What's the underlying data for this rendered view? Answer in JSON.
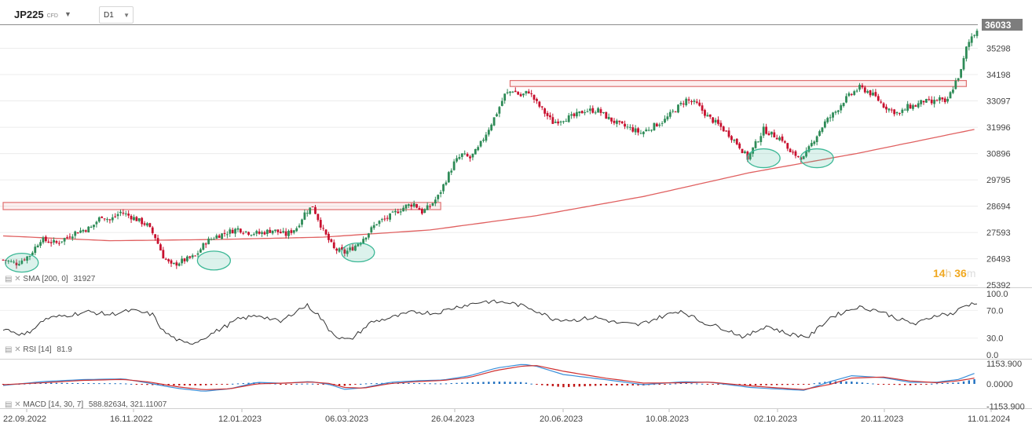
{
  "header": {
    "symbol": "JP225",
    "instrument_type": "CFD",
    "timeframe": "D1"
  },
  "timer": {
    "hours": "14",
    "h_unit": "h",
    "minutes": "36",
    "m_unit": "m"
  },
  "indicators": {
    "sma": {
      "name": "SMA",
      "params": "[200, 0]",
      "value": "31927"
    },
    "rsi": {
      "name": "RSI",
      "params": "[14]",
      "value": "81.9"
    },
    "macd": {
      "name": "MACD",
      "params": "[14, 30, 7]",
      "value": "588.82634, 321.11007"
    }
  },
  "colors": {
    "up": "#2e8b57",
    "down": "#c8102e",
    "sma": "#e06060",
    "zone": "#e07070",
    "ellipse": "#3cb896",
    "macd_line": "#3a8fd9",
    "signal_line": "#d03030",
    "hist_pos": "#1e6fc0",
    "hist_neg": "#c01515"
  },
  "chart_data": [
    {
      "type": "candlestick",
      "title": "JP225",
      "timeframe": "D1",
      "x_ticks": [
        "22.09.2022",
        "16.11.2022",
        "12.01.2023",
        "06.03.2023",
        "26.04.2023",
        "20.06.2023",
        "10.08.2023",
        "02.10.2023",
        "20.11.2023",
        "11.01.2024"
      ],
      "y_ticks": [
        25392,
        26493,
        27593,
        28694,
        29795,
        30896,
        31996,
        33097,
        34198,
        35298
      ],
      "ylim": [
        25300,
        36300
      ],
      "last_price": 36033,
      "close_path": [
        [
          0,
          26450
        ],
        [
          5,
          26300
        ],
        [
          10,
          26650
        ],
        [
          14,
          27300
        ],
        [
          20,
          27150
        ],
        [
          27,
          27600
        ],
        [
          33,
          27800
        ],
        [
          37,
          28300
        ],
        [
          40,
          28100
        ],
        [
          44,
          28450
        ],
        [
          49,
          28200
        ],
        [
          54,
          27900
        ],
        [
          57,
          27400
        ],
        [
          60,
          26600
        ],
        [
          63,
          26200
        ],
        [
          67,
          26400
        ],
        [
          72,
          26600
        ],
        [
          76,
          27200
        ],
        [
          80,
          27450
        ],
        [
          84,
          27600
        ],
        [
          88,
          27750
        ],
        [
          92,
          27600
        ],
        [
          96,
          27550
        ],
        [
          101,
          27700
        ],
        [
          106,
          27500
        ],
        [
          110,
          27800
        ],
        [
          113,
          28400
        ],
        [
          116,
          28700
        ],
        [
          120,
          27650
        ],
        [
          124,
          26900
        ],
        [
          128,
          26750
        ],
        [
          131,
          26950
        ],
        [
          134,
          27250
        ],
        [
          137,
          27600
        ],
        [
          140,
          28000
        ],
        [
          144,
          28200
        ],
        [
          148,
          28500
        ],
        [
          151,
          28700
        ],
        [
          154,
          28800
        ],
        [
          157,
          28450
        ],
        [
          160,
          28700
        ],
        [
          163,
          29100
        ],
        [
          166,
          29800
        ],
        [
          169,
          30500
        ],
        [
          172,
          30850
        ],
        [
          175,
          30700
        ],
        [
          178,
          31100
        ],
        [
          182,
          31950
        ],
        [
          185,
          32600
        ],
        [
          188,
          33350
        ],
        [
          191,
          33550
        ],
        [
          194,
          33300
        ],
        [
          197,
          33500
        ],
        [
          200,
          33000
        ],
        [
          203,
          32600
        ],
        [
          206,
          32200
        ],
        [
          210,
          32350
        ],
        [
          214,
          32450
        ],
        [
          218,
          32700
        ],
        [
          223,
          32700
        ],
        [
          227,
          32350
        ],
        [
          231,
          32100
        ],
        [
          235,
          31950
        ],
        [
          239,
          31750
        ],
        [
          243,
          32000
        ],
        [
          248,
          32300
        ],
        [
          252,
          32750
        ],
        [
          256,
          33150
        ],
        [
          260,
          32950
        ],
        [
          264,
          32450
        ],
        [
          268,
          32100
        ],
        [
          272,
          31700
        ],
        [
          276,
          31200
        ],
        [
          279,
          30700
        ],
        [
          282,
          31300
        ],
        [
          285,
          31900
        ],
        [
          288,
          31700
        ],
        [
          292,
          31500
        ],
        [
          295,
          30900
        ],
        [
          298,
          30800
        ],
        [
          300,
          30700
        ],
        [
          304,
          31500
        ],
        [
          308,
          32200
        ],
        [
          312,
          32650
        ],
        [
          315,
          33100
        ],
        [
          318,
          33400
        ],
        [
          321,
          33650
        ],
        [
          324,
          33500
        ],
        [
          327,
          33250
        ],
        [
          330,
          32900
        ],
        [
          333,
          32700
        ],
        [
          336,
          32550
        ],
        [
          339,
          32850
        ],
        [
          342,
          32900
        ],
        [
          345,
          33100
        ],
        [
          348,
          33000
        ],
        [
          351,
          33200
        ],
        [
          353,
          32950
        ],
        [
          355,
          33400
        ],
        [
          357,
          33900
        ],
        [
          359,
          34350
        ],
        [
          361,
          35300
        ],
        [
          363,
          35800
        ],
        [
          365,
          36033
        ]
      ],
      "sma": {
        "name": "SMA",
        "period": 200,
        "shift": 0,
        "last": 31927,
        "path": [
          [
            0,
            27450
          ],
          [
            40,
            27250
          ],
          [
            80,
            27300
          ],
          [
            120,
            27400
          ],
          [
            160,
            27700
          ],
          [
            200,
            28300
          ],
          [
            240,
            29100
          ],
          [
            280,
            30100
          ],
          [
            320,
            30900
          ],
          [
            365,
            31927
          ]
        ]
      },
      "resistance_zones": [
        {
          "x_start": 0,
          "x_end": 164,
          "low": 28550,
          "high": 28850
        },
        {
          "x_start": 190,
          "x_end": 361,
          "low": 33700,
          "high": 33950
        }
      ],
      "highlighted_lows": [
        [
          7,
          26330
        ],
        [
          79,
          26420
        ],
        [
          133,
          26760
        ],
        [
          285,
          30700
        ],
        [
          305,
          30700
        ]
      ]
    },
    {
      "type": "line",
      "name": "RSI",
      "period": 14,
      "last": 81.9,
      "levels": [
        100.0,
        70.0,
        30.0,
        0.0
      ],
      "ylim": [
        0,
        100
      ],
      "path": [
        [
          0,
          44
        ],
        [
          8,
          34
        ],
        [
          16,
          58
        ],
        [
          24,
          63
        ],
        [
          32,
          68
        ],
        [
          40,
          64
        ],
        [
          48,
          70
        ],
        [
          56,
          64
        ],
        [
          60,
          40
        ],
        [
          64,
          30
        ],
        [
          68,
          22
        ],
        [
          72,
          24
        ],
        [
          80,
          40
        ],
        [
          88,
          57
        ],
        [
          96,
          63
        ],
        [
          104,
          53
        ],
        [
          110,
          70
        ],
        [
          114,
          77
        ],
        [
          118,
          64
        ],
        [
          122,
          43
        ],
        [
          126,
          30
        ],
        [
          130,
          27
        ],
        [
          138,
          53
        ],
        [
          146,
          60
        ],
        [
          154,
          68
        ],
        [
          162,
          66
        ],
        [
          170,
          75
        ],
        [
          180,
          83
        ],
        [
          190,
          81
        ],
        [
          198,
          73
        ],
        [
          206,
          58
        ],
        [
          214,
          56
        ],
        [
          222,
          60
        ],
        [
          230,
          52
        ],
        [
          238,
          49
        ],
        [
          246,
          60
        ],
        [
          254,
          70
        ],
        [
          262,
          53
        ],
        [
          270,
          44
        ],
        [
          278,
          31
        ],
        [
          286,
          48
        ],
        [
          294,
          36
        ],
        [
          302,
          32
        ],
        [
          310,
          60
        ],
        [
          320,
          75
        ],
        [
          328,
          70
        ],
        [
          336,
          57
        ],
        [
          342,
          50
        ],
        [
          350,
          64
        ],
        [
          356,
          65
        ],
        [
          360,
          76
        ],
        [
          365,
          82
        ]
      ]
    },
    {
      "type": "line",
      "name": "MACD",
      "params": [
        14,
        30,
        7
      ],
      "values": [
        588.82634,
        321.11007
      ],
      "y_ticks": [
        1153.9,
        0.0,
        -1153.9
      ],
      "ylim": [
        -1250,
        1250
      ],
      "macd_path": [
        [
          0,
          -80
        ],
        [
          15,
          120
        ],
        [
          30,
          220
        ],
        [
          45,
          260
        ],
        [
          55,
          30
        ],
        [
          65,
          -220
        ],
        [
          75,
          -380
        ],
        [
          85,
          -250
        ],
        [
          95,
          80
        ],
        [
          105,
          30
        ],
        [
          115,
          120
        ],
        [
          122,
          -20
        ],
        [
          128,
          -280
        ],
        [
          135,
          -200
        ],
        [
          145,
          80
        ],
        [
          155,
          160
        ],
        [
          165,
          200
        ],
        [
          175,
          420
        ],
        [
          185,
          820
        ],
        [
          195,
          1010
        ],
        [
          200,
          900
        ],
        [
          210,
          480
        ],
        [
          225,
          230
        ],
        [
          240,
          -40
        ],
        [
          255,
          110
        ],
        [
          265,
          80
        ],
        [
          280,
          -180
        ],
        [
          290,
          -260
        ],
        [
          300,
          -330
        ],
        [
          310,
          120
        ],
        [
          318,
          420
        ],
        [
          330,
          320
        ],
        [
          340,
          80
        ],
        [
          350,
          90
        ],
        [
          358,
          230
        ],
        [
          365,
          589
        ]
      ],
      "signal_path": [
        [
          0,
          -40
        ],
        [
          15,
          60
        ],
        [
          30,
          180
        ],
        [
          45,
          230
        ],
        [
          55,
          90
        ],
        [
          65,
          -140
        ],
        [
          75,
          -300
        ],
        [
          85,
          -250
        ],
        [
          95,
          0
        ],
        [
          105,
          40
        ],
        [
          115,
          100
        ],
        [
          122,
          30
        ],
        [
          128,
          -180
        ],
        [
          135,
          -220
        ],
        [
          145,
          20
        ],
        [
          155,
          120
        ],
        [
          165,
          180
        ],
        [
          175,
          340
        ],
        [
          185,
          700
        ],
        [
          195,
          920
        ],
        [
          200,
          940
        ],
        [
          210,
          650
        ],
        [
          225,
          310
        ],
        [
          240,
          40
        ],
        [
          255,
          60
        ],
        [
          265,
          90
        ],
        [
          280,
          -100
        ],
        [
          290,
          -200
        ],
        [
          300,
          -290
        ],
        [
          310,
          -20
        ],
        [
          318,
          300
        ],
        [
          330,
          350
        ],
        [
          340,
          150
        ],
        [
          350,
          60
        ],
        [
          358,
          160
        ],
        [
          365,
          321
        ]
      ]
    }
  ]
}
